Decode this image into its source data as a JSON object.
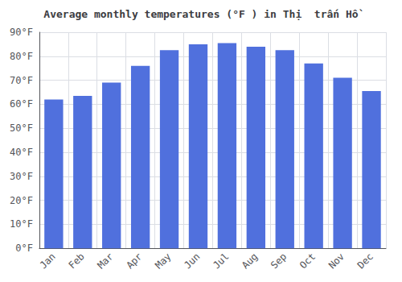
{
  "chart_data": {
    "type": "bar",
    "title": "Average monthly temperatures (°F ) in Thị  trấn Hồ",
    "categories": [
      "Jan",
      "Feb",
      "Mar",
      "Apr",
      "May",
      "Jun",
      "Jul",
      "Aug",
      "Sep",
      "Oct",
      "Nov",
      "Dec"
    ],
    "values": [
      62,
      63.5,
      69,
      76,
      82.5,
      85,
      85.5,
      84,
      82.5,
      77,
      71,
      65.5
    ],
    "ylim": [
      0,
      90
    ],
    "yticks": [
      {
        "value": 0,
        "label": "0°F"
      },
      {
        "value": 10,
        "label": "10°F"
      },
      {
        "value": 20,
        "label": "20°F"
      },
      {
        "value": 30,
        "label": "30°F"
      },
      {
        "value": 40,
        "label": "40°F"
      },
      {
        "value": 50,
        "label": "50°F"
      },
      {
        "value": 60,
        "label": "60°F"
      },
      {
        "value": 70,
        "label": "70°F"
      },
      {
        "value": 80,
        "label": "80°F"
      },
      {
        "value": 90,
        "label": "90°F"
      }
    ],
    "grid": true
  }
}
